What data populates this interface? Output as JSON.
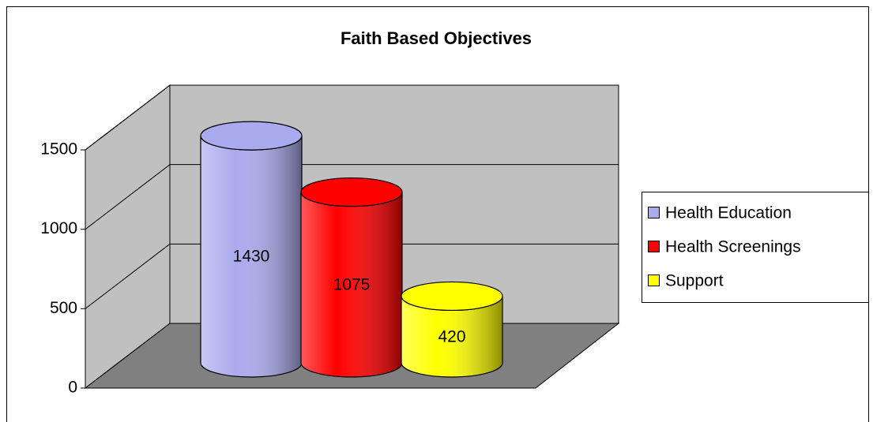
{
  "chart_data": {
    "type": "cylinder",
    "title": "Faith Based Objectives",
    "series": [
      {
        "name": "Health Education",
        "color": "#aaaaee",
        "values": [
          1430
        ]
      },
      {
        "name": "Health Screenings",
        "color": "#ff0000",
        "values": [
          1075
        ]
      },
      {
        "name": "Support",
        "color": "#ffff00",
        "values": [
          420
        ]
      }
    ],
    "ylim": [
      0,
      1500
    ],
    "yticks": [
      0,
      500,
      1000,
      1500
    ],
    "grid": true,
    "legend": "right"
  }
}
